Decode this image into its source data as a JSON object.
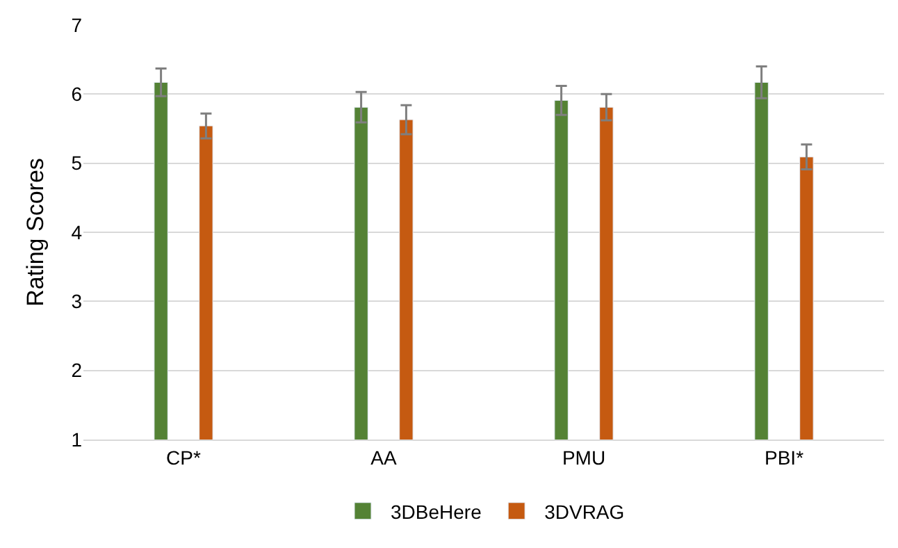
{
  "chart_data": {
    "type": "bar",
    "ylabel": "Rating Scores",
    "categories": [
      "CP*",
      "AA",
      "PMU",
      "PBI*"
    ],
    "series": [
      {
        "name": "3DBeHere",
        "color": "#548235",
        "values": [
          6.17,
          5.81,
          5.91,
          6.17
        ],
        "errors": [
          0.2,
          0.22,
          0.21,
          0.23
        ]
      },
      {
        "name": "3DVRAG",
        "color": "#c55a11",
        "values": [
          5.54,
          5.63,
          5.81,
          5.09
        ],
        "errors": [
          0.18,
          0.21,
          0.19,
          0.18
        ]
      }
    ],
    "ylim": [
      1,
      7
    ],
    "yticks": [
      1,
      2,
      3,
      4,
      5,
      6,
      7
    ],
    "grid": "y",
    "legend": "bottom"
  }
}
